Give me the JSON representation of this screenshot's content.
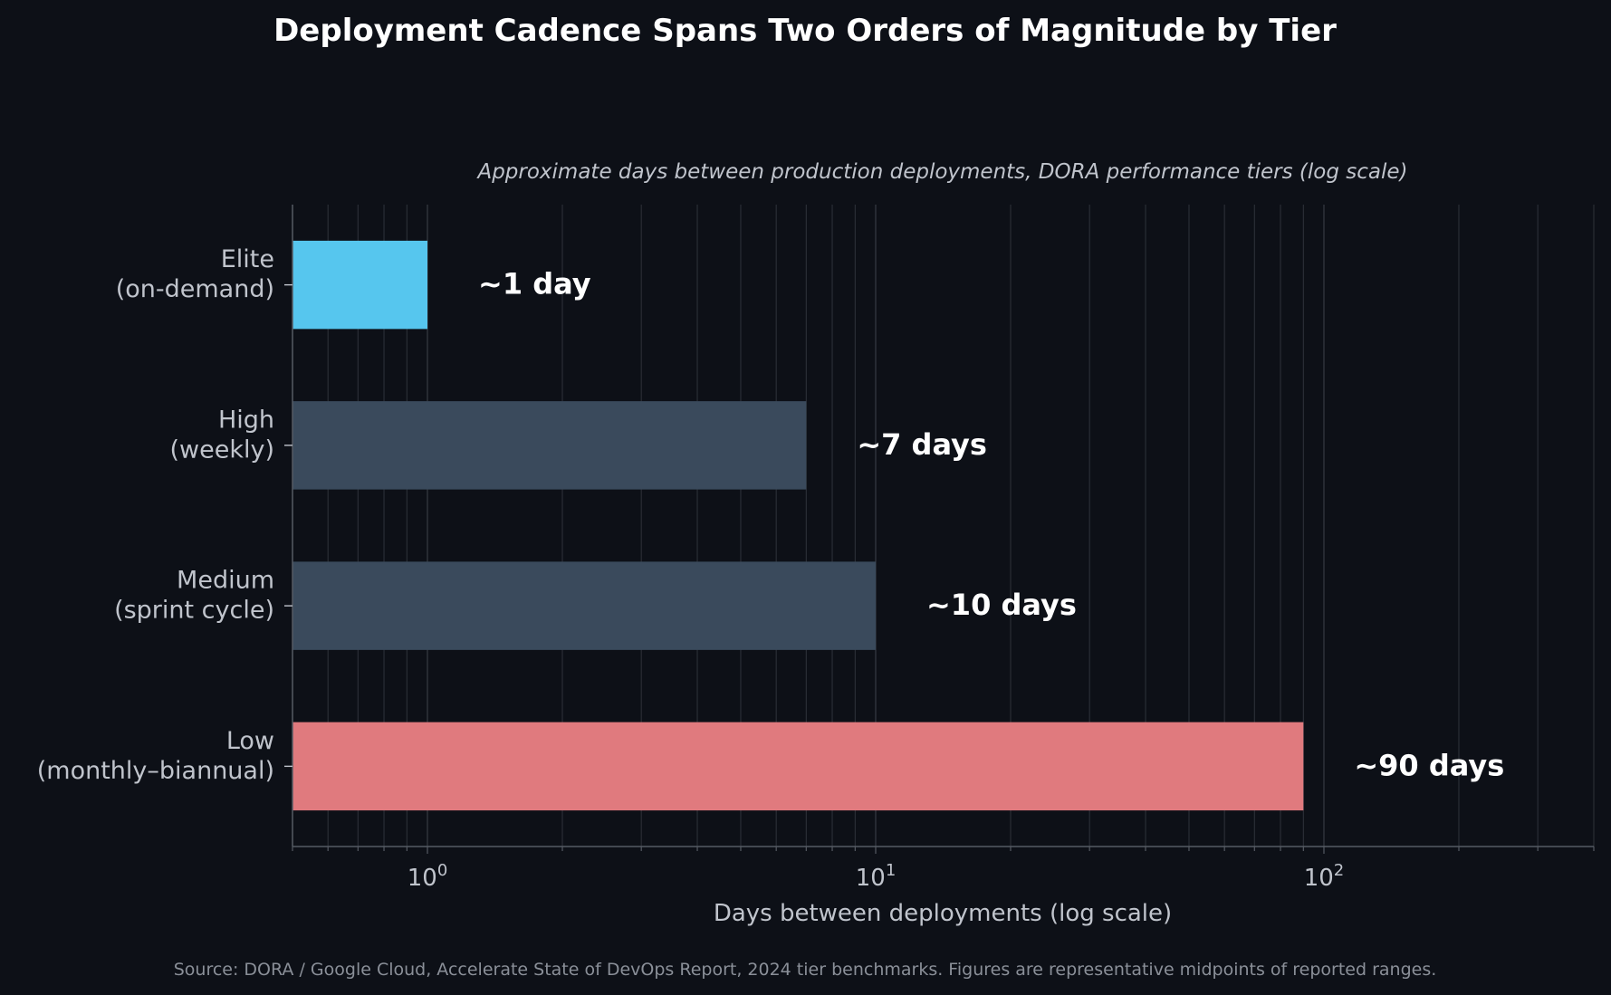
{
  "chart_data": {
    "type": "bar",
    "orientation": "horizontal",
    "title": "Deployment Cadence Spans Two Orders of Magnitude by Tier",
    "subtitle": "Approximate days between production deployments, DORA performance tiers (log scale)",
    "xlabel": "Days between deployments (log scale)",
    "ylabel": "",
    "x_scale": "log",
    "xlim": [
      0.5,
      400
    ],
    "grid": true,
    "source": "Source: DORA / Google Cloud, Accelerate State of DevOps Report, 2024 tier benchmarks. Figures are representative midpoints of reported ranges.",
    "x_ticks": [
      {
        "value": 1,
        "base": "10",
        "exp": "0"
      },
      {
        "value": 10,
        "base": "10",
        "exp": "1"
      },
      {
        "value": 100,
        "base": "10",
        "exp": "2"
      }
    ],
    "categories": [
      [
        "Elite",
        "(on-demand)"
      ],
      [
        "High",
        "(weekly)"
      ],
      [
        "Medium",
        "(sprint cycle)"
      ],
      [
        "Low",
        "(monthly–biannual)"
      ]
    ],
    "values": [
      1,
      7,
      10,
      90
    ],
    "data_labels": [
      "~1 day",
      "~7 days",
      "~10 days",
      "~90 days"
    ],
    "colors": [
      "#56c6ee",
      "#3a4a5c",
      "#3a4a5c",
      "#e07a7e"
    ]
  },
  "colors": {
    "background": "#0d1017",
    "text": "#ffffff",
    "muted_text": "#c0c4cc",
    "source_text": "#8a8f98",
    "grid": "#2c3038"
  }
}
